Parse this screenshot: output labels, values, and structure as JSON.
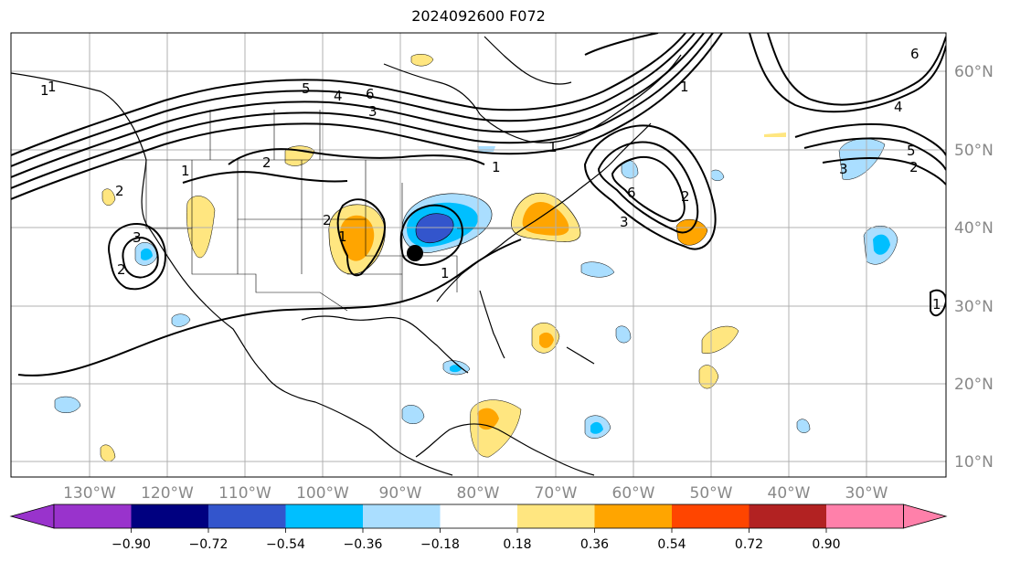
{
  "title": "2024092600 F072",
  "longitude_labels": [
    "130°W",
    "120°W",
    "110°W",
    "100°W",
    "90°W",
    "80°W",
    "70°W",
    "60°W",
    "50°W",
    "40°W",
    "30°W"
  ],
  "latitude_labels": [
    "60°N",
    "50°N",
    "40°N",
    "30°N",
    "20°N",
    "10°N"
  ],
  "colorbar": {
    "colors": [
      "#9933cc",
      "#000080",
      "#3355cc",
      "#00bfff",
      "#aadeff",
      "#ffffff",
      "#ffe680",
      "#ffa500",
      "#ff4500",
      "#b22222",
      "#ff80aa"
    ],
    "under_color": "#9933cc",
    "over_color": "#ff80aa",
    "tick_labels": [
      "−0.90",
      "−0.72",
      "−0.54",
      "−0.36",
      "−0.18",
      "0.18",
      "0.36",
      "0.54",
      "0.72",
      "0.90"
    ]
  },
  "contour_labels": [
    "1",
    "2",
    "3",
    "4",
    "5",
    "6",
    "1",
    "2",
    "3",
    "4",
    "5",
    "6",
    "1",
    "2",
    "3",
    "1",
    "2",
    "1",
    "2",
    "3",
    "2",
    "1",
    "1",
    "1",
    "6",
    "1"
  ],
  "colors": {
    "positive_light": "#ffe680",
    "positive_med": "#ffa500",
    "negative_light": "#aadeff",
    "negative_med": "#00bfff",
    "negative_dark": "#3355cc",
    "grid": "#b0b0b0",
    "contour": "#000000"
  }
}
